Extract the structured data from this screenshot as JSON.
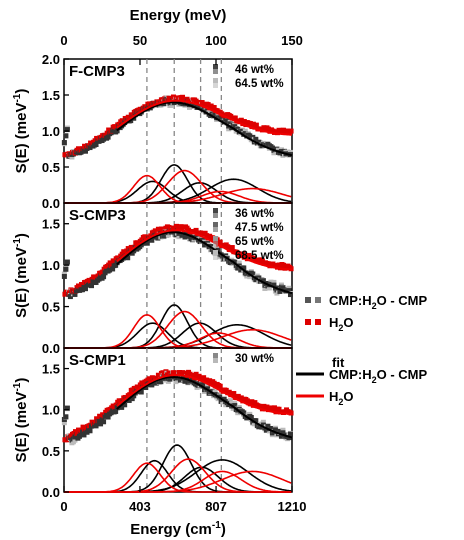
{
  "chart_data": {
    "type": "line",
    "x_axis": {
      "label": "Energy",
      "unit": "cm",
      "unit_sup": "-1",
      "lim": [
        0,
        1210
      ],
      "ticks": [
        "0",
        "403",
        "807",
        "1210"
      ]
    },
    "top_axis": {
      "label": "Energy",
      "unit": "(meV)",
      "lim": [
        0,
        150
      ],
      "ticks": [
        "0",
        "50",
        "100",
        "150"
      ]
    },
    "y_axis": {
      "label": "S(E)",
      "unit": "(meV",
      "unit_sup": "-1",
      "unit_close": ")"
    },
    "vertical_guides_cm": [
      440,
      585,
      725,
      835
    ],
    "panels": [
      {
        "label": "F-CMP3",
        "ylim": [
          0,
          2.0
        ],
        "yticks": [
          "0.0",
          "0.5",
          "1.0",
          "1.5",
          "2.0"
        ],
        "legend": [
          "46 wt%",
          "64.5 wt%"
        ],
        "peaks_black": [
          [
            470,
            0.3,
            80
          ],
          [
            585,
            0.53,
            70
          ],
          [
            720,
            0.28,
            90
          ],
          [
            900,
            0.33,
            130
          ]
        ],
        "peaks_red": [
          [
            440,
            0.38,
            70
          ],
          [
            640,
            0.45,
            90
          ],
          [
            830,
            0.16,
            100
          ],
          [
            1000,
            0.2,
            160
          ]
        ]
      },
      {
        "label": "S-CMP3",
        "ylim": [
          0,
          1.75
        ],
        "yticks": [
          "0.0",
          "0.5",
          "1.0",
          "1.5"
        ],
        "legend": [
          "36 wt%",
          "47.5 wt%",
          "65 wt%",
          "68.5 wt%"
        ],
        "peaks_black": [
          [
            470,
            0.3,
            80
          ],
          [
            585,
            0.52,
            70
          ],
          [
            720,
            0.3,
            90
          ],
          [
            920,
            0.28,
            140
          ]
        ],
        "peaks_red": [
          [
            440,
            0.4,
            70
          ],
          [
            640,
            0.44,
            90
          ],
          [
            820,
            0.18,
            100
          ],
          [
            1000,
            0.22,
            160
          ]
        ]
      },
      {
        "label": "S-CMP1",
        "ylim": [
          0,
          1.75
        ],
        "yticks": [
          "0.0",
          "0.5",
          "1.0",
          "1.5"
        ],
        "legend": [
          "30 wt%"
        ],
        "peaks_black": [
          [
            480,
            0.38,
            70
          ],
          [
            600,
            0.57,
            75
          ],
          [
            730,
            0.3,
            90
          ],
          [
            840,
            0.39,
            140
          ]
        ],
        "peaks_red": [
          [
            440,
            0.35,
            70
          ],
          [
            660,
            0.4,
            90
          ],
          [
            840,
            0.25,
            100
          ],
          [
            1000,
            0.25,
            160
          ]
        ]
      }
    ],
    "series": [
      {
        "name": "CMP:H₂O - CMP",
        "color": "#555555"
      },
      {
        "name": "H₂O",
        "color": "#dd0000"
      }
    ],
    "legend_entries": {
      "cmp_main": "CMP:H",
      "cmp_sub": "2",
      "cmp_rest": "O - CMP",
      "h2o_main": "H",
      "h2o_sub": "2",
      "h2o_rest": "O",
      "fit_title": "fit"
    },
    "colors": {
      "cmp": "#555555",
      "h2o": "#dd0000",
      "fit_black": "#000000",
      "fit_red": "#ee0000",
      "light_gray": "#bbbbbb",
      "dark_gray": "#333333",
      "guide": "#888888"
    }
  }
}
